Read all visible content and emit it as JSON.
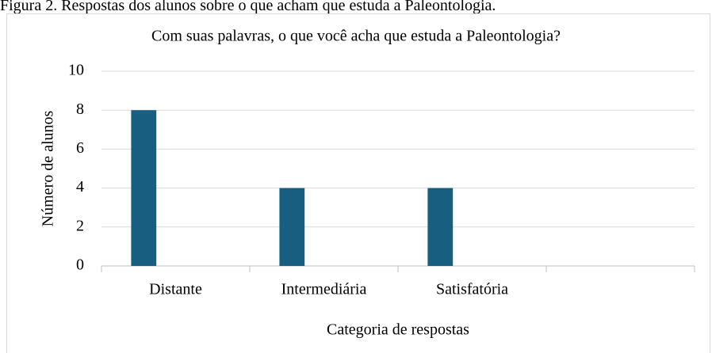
{
  "caption": "Figura 2. Respostas dos alunos sobre o que acham que estuda a Paleontologia.",
  "chart_data": {
    "type": "bar",
    "title": "Com suas palavras, o que você acha que estuda a Paleontologia?",
    "categories": [
      "Distante",
      "Intermediária",
      "Satisfatória",
      null
    ],
    "values": [
      8,
      4,
      4,
      null
    ],
    "color": "#185e80",
    "x_label": "Categoria de respostas",
    "y_label": "Número de alunos",
    "ylim": [
      0,
      10
    ],
    "yticks": [
      0,
      2,
      4,
      6,
      8,
      10
    ],
    "grid": true
  }
}
